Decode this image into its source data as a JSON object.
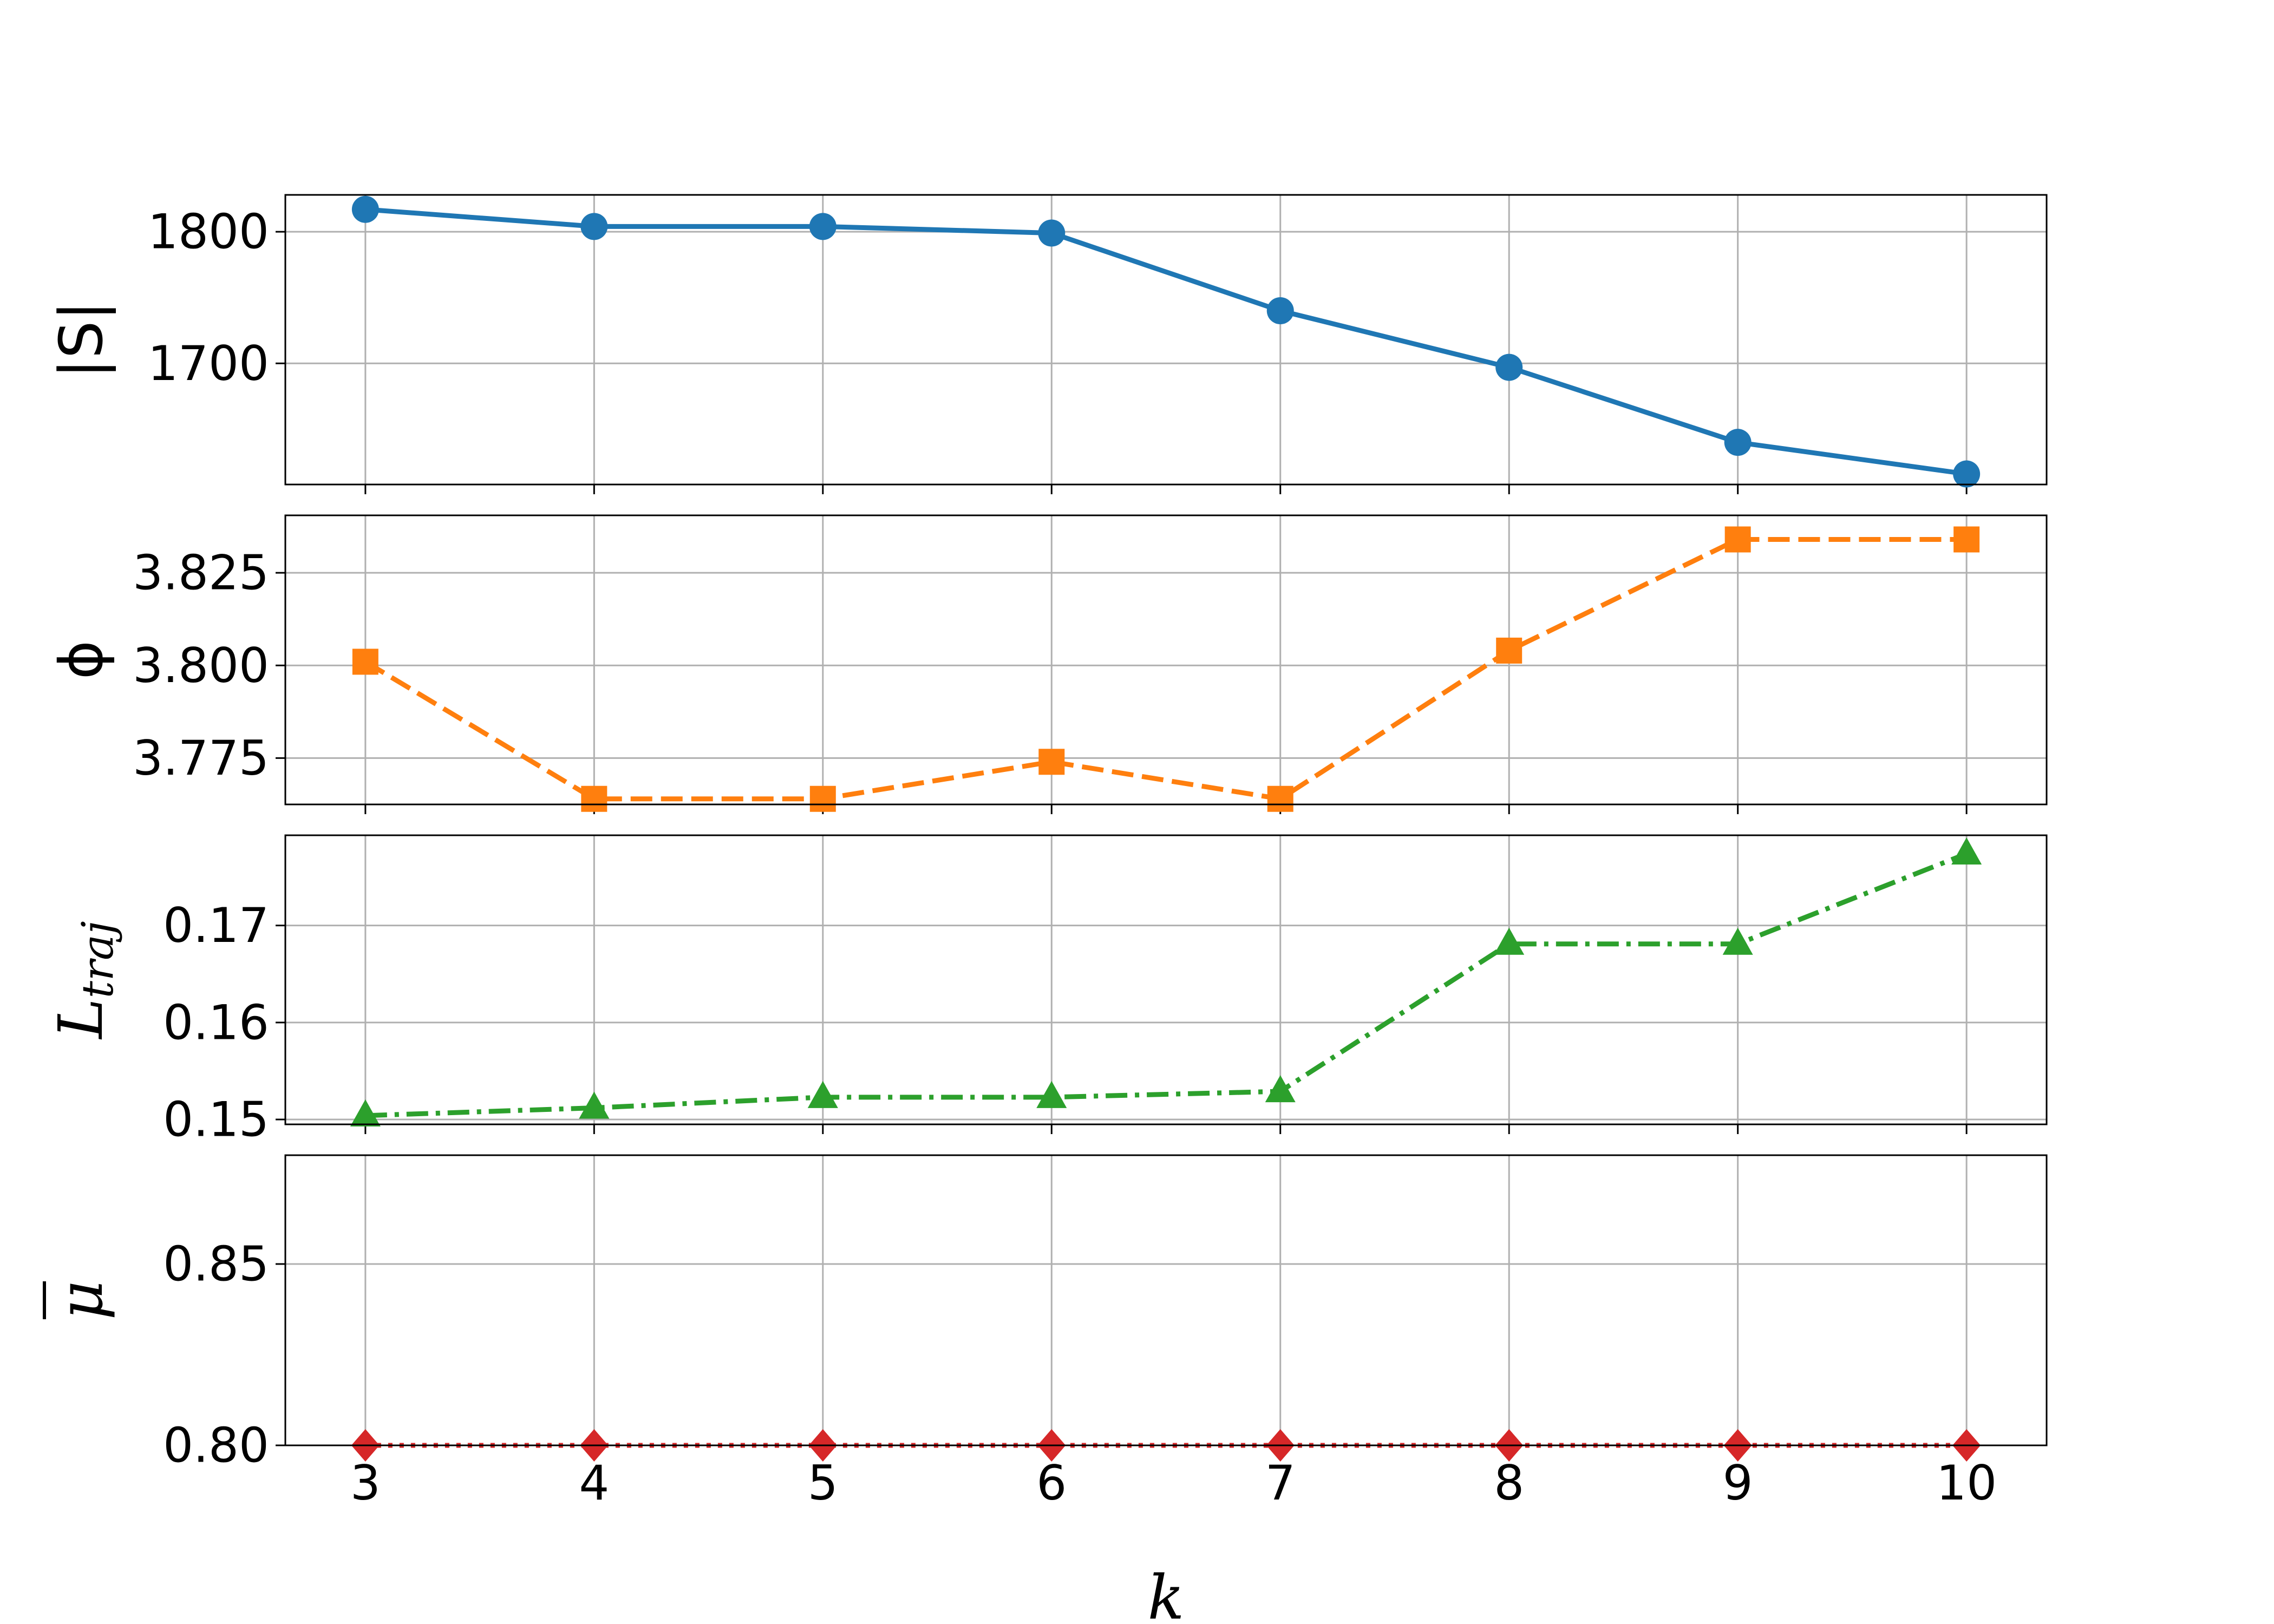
{
  "chart_data": [
    {
      "type": "line",
      "ylabel": "|S|",
      "x": [
        3,
        4,
        5,
        6,
        7,
        8,
        9,
        10
      ],
      "series": [
        {
          "values": [
            1817,
            1804,
            1804,
            1799,
            1740,
            1697,
            1640,
            1616
          ],
          "color": "#1f77b4",
          "marker": "circle",
          "linestyle": "solid"
        }
      ],
      "yticks": [
        1700,
        1800
      ],
      "ytick_labels": [
        "1700",
        "1800"
      ],
      "ylim": [
        1608,
        1828
      ],
      "grid": true
    },
    {
      "type": "line",
      "ylabel": "ϕ",
      "x": [
        3,
        4,
        5,
        6,
        7,
        8,
        9,
        10
      ],
      "series": [
        {
          "values": [
            3.801,
            3.764,
            3.764,
            3.774,
            3.764,
            3.804,
            3.834,
            3.834
          ],
          "color": "#ff7f0e",
          "marker": "square",
          "linestyle": "dashed"
        }
      ],
      "yticks": [
        3.775,
        3.8,
        3.825
      ],
      "ytick_labels": [
        "3.775",
        "3.800",
        "3.825"
      ],
      "ylim": [
        3.7625,
        3.8405
      ],
      "grid": true
    },
    {
      "type": "line",
      "ylabel_main": "L",
      "ylabel_sub": "traj",
      "x": [
        3,
        4,
        5,
        6,
        7,
        8,
        9,
        10
      ],
      "series": [
        {
          "values": [
            0.1504,
            0.1512,
            0.1523,
            0.1523,
            0.1529,
            0.1681,
            0.1681,
            0.1774
          ],
          "color": "#2ca02c",
          "marker": "triangle",
          "linestyle": "dashdot"
        }
      ],
      "yticks": [
        0.15,
        0.16,
        0.17
      ],
      "ytick_labels": [
        "0.15",
        "0.16",
        "0.17"
      ],
      "ylim": [
        0.1495,
        0.1793
      ],
      "grid": true
    },
    {
      "type": "line",
      "ylabel": "μ",
      "x": [
        3,
        4,
        5,
        6,
        7,
        8,
        9,
        10
      ],
      "series": [
        {
          "values": [
            0.8,
            0.8,
            0.8,
            0.8,
            0.8,
            0.8,
            0.8,
            0.8
          ],
          "color": "#d62728",
          "marker": "diamond",
          "linestyle": "dotted"
        }
      ],
      "yticks": [
        0.8,
        0.85
      ],
      "ytick_labels": [
        "0.80",
        "0.85"
      ],
      "ylim": [
        0.8,
        0.88
      ],
      "grid": true
    }
  ],
  "shared_x": {
    "label": "k",
    "ticks": [
      3,
      4,
      5,
      6,
      7,
      8,
      9,
      10
    ],
    "tick_labels": [
      "3",
      "4",
      "5",
      "6",
      "7",
      "8",
      "9",
      "10"
    ],
    "xlim": [
      2.65,
      10.35
    ]
  }
}
